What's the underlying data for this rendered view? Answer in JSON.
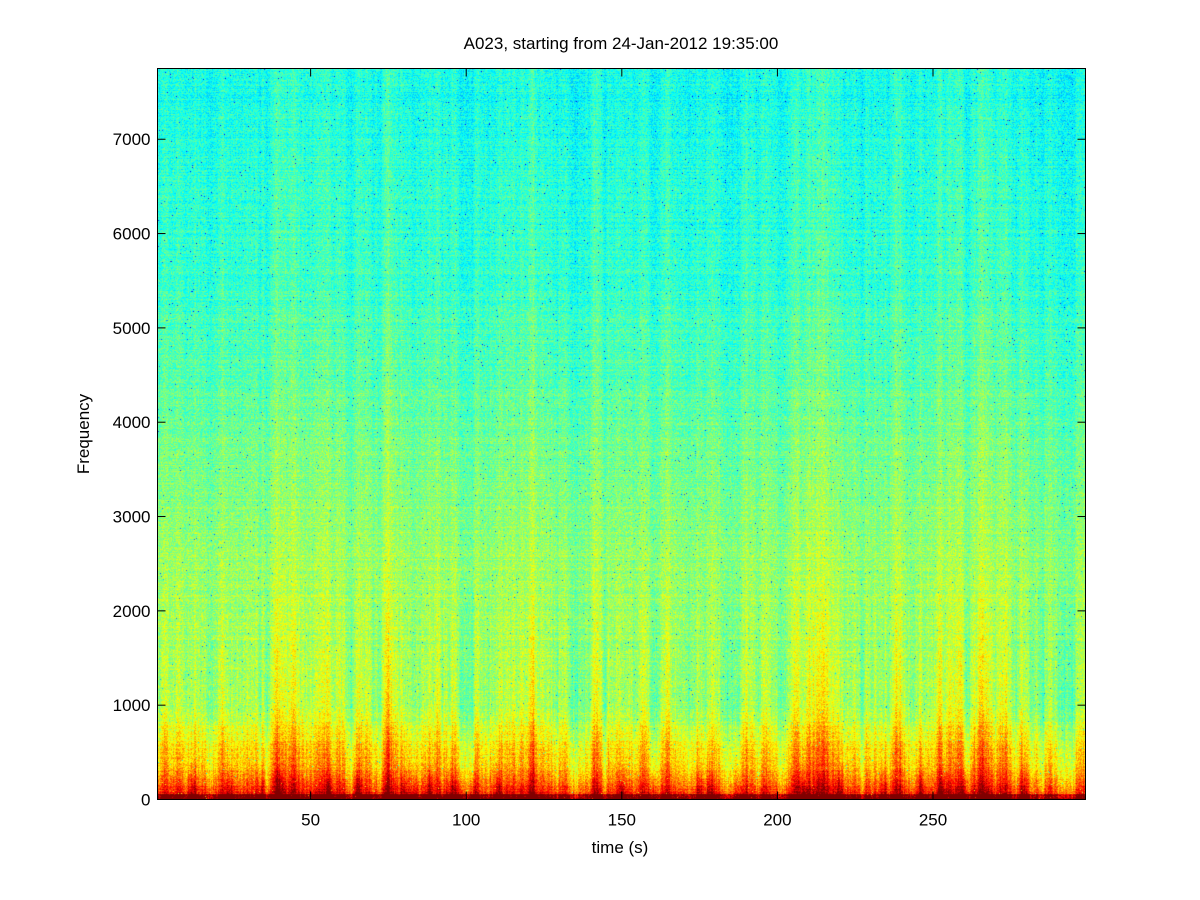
{
  "chart_data": {
    "type": "heatmap",
    "title": "A023, starting from 24-Jan-2012 19:35:00",
    "xlabel": "time (s)",
    "ylabel": "Frequency",
    "xlim": [
      0.8,
      299
    ],
    "ylim": [
      0,
      7750
    ],
    "x_ticks": [
      50,
      100,
      150,
      200,
      250
    ],
    "y_ticks": [
      0,
      1000,
      2000,
      3000,
      4000,
      5000,
      6000,
      7000
    ],
    "colormap": "jet",
    "colors": {
      "high_freq": "#40e8b0",
      "mid_freq": "#d8f040",
      "low_freq": "#ffe000",
      "near_zero": "#c01000"
    },
    "intensity_profile": {
      "description_levels": [
        {
          "frequency": 0,
          "level": 0.92
        },
        {
          "frequency": 300,
          "level": 0.72
        },
        {
          "frequency": 1000,
          "level": 0.55
        },
        {
          "frequency": 2500,
          "level": 0.53
        },
        {
          "frequency": 4000,
          "level": 0.48
        },
        {
          "frequency": 5500,
          "level": 0.43
        },
        {
          "frequency": 7750,
          "level": 0.4
        }
      ]
    },
    "transients_s": [
      12,
      24,
      34,
      40,
      56,
      65,
      80,
      83,
      88,
      95,
      98,
      102,
      110,
      150,
      160,
      175,
      178,
      187,
      208,
      220,
      234,
      246,
      253,
      260,
      279
    ]
  }
}
